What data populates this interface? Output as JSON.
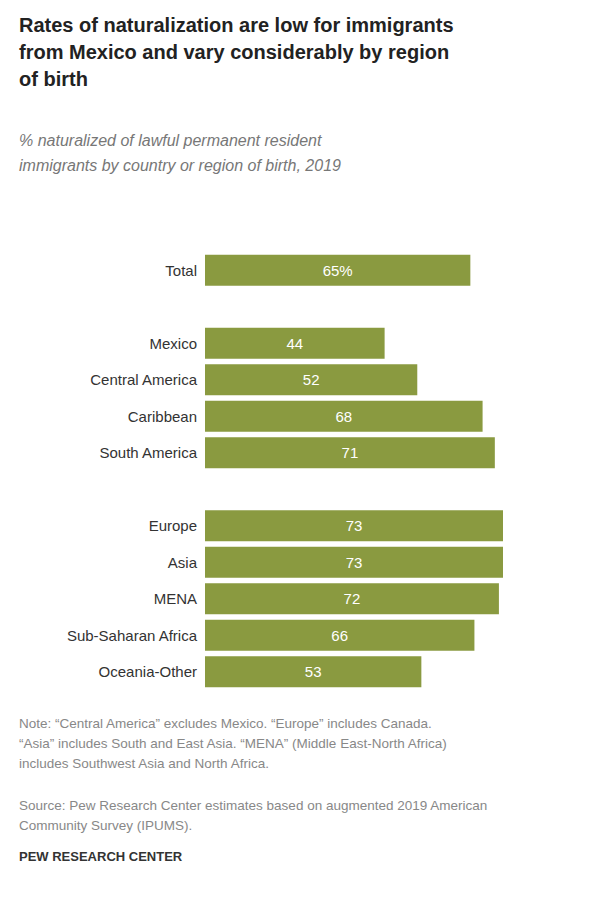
{
  "chart_data": {
    "type": "bar",
    "title": "Rates of naturalization are low for immigrants from Mexico and vary considerably by region of birth",
    "subtitle": "% naturalized of lawful permanent resident immigrants by country or region of birth, 2019",
    "categories": [
      "Total",
      null,
      "Mexico",
      "Central America",
      "Caribbean",
      "South America",
      null,
      "Europe",
      "Asia",
      "MENA",
      "Sub-Saharan Africa",
      "Oceania-Other"
    ],
    "values": [
      65,
      null,
      44,
      52,
      68,
      71,
      null,
      73,
      73,
      72,
      66,
      53
    ],
    "value_labels": [
      "65%",
      null,
      "44",
      "52",
      "68",
      "71",
      null,
      "73",
      "73",
      "72",
      "66",
      "53"
    ],
    "color": "#8a9a40",
    "orientation": "horizontal",
    "xlim": [
      0,
      73
    ],
    "grid": false,
    "tick_labels": "y",
    "data_labels": true,
    "annotations": [
      "Note: “Central America” excludes Mexico. “Europe” includes Canada. “Asia” includes South and East Asia. “MENA” (Middle East-North Africa) includes Southwest Asia and North Africa.",
      "Source: Pew Research Center estimates based on augmented 2019 American Community Survey (IPUMS).",
      "PEW RESEARCH CENTER"
    ]
  }
}
